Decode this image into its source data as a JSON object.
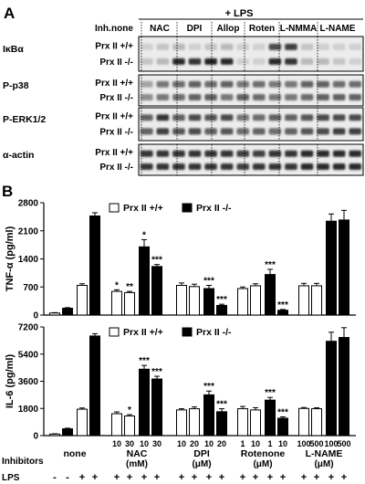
{
  "panel_a": {
    "panel_label": "A",
    "lps_header": "+ LPS",
    "inh_label": "Inh.",
    "column_headers": [
      "none",
      "NAC",
      "DPI",
      "Allop",
      "Roten",
      "L-NMMA",
      "L-NAME"
    ],
    "blots": [
      {
        "protein": "IκBα",
        "rows": [
          "Prx II +/+",
          "Prx II -/-"
        ]
      },
      {
        "protein": "P-p38",
        "rows": [
          "Prx II +/+",
          "Prx II -/-"
        ]
      },
      {
        "protein": "P-ERK1/2",
        "rows": [
          "Prx II +/+",
          "Prx II -/-"
        ]
      },
      {
        "protein": "α-actin",
        "rows": [
          "Prx II +/+",
          "Prx II -/-"
        ]
      }
    ]
  },
  "panel_b": {
    "panel_label": "B",
    "inhibitors_label": "Inhibitors",
    "lps_label": "LPS",
    "groups": [
      {
        "name": "none",
        "unit": "",
        "doses": [
          "",
          "",
          "",
          ""
        ]
      },
      {
        "name": "NAC",
        "unit": "(mM)",
        "doses": [
          "10",
          "30",
          "10",
          "30"
        ]
      },
      {
        "name": "DPI",
        "unit": "(μM)",
        "doses": [
          "10",
          "20",
          "10",
          "20"
        ]
      },
      {
        "name": "Rotenone",
        "unit": "(μM)",
        "doses": [
          "1",
          "10",
          "1",
          "10"
        ]
      },
      {
        "name": "L-NAME",
        "unit": "(μM)",
        "doses": [
          "100",
          "500",
          "100",
          "500"
        ]
      }
    ],
    "lps_signs": [
      "-",
      "-",
      "+",
      "+",
      "+",
      "+",
      "+",
      "+",
      "+",
      "+",
      "+",
      "+",
      "+",
      "+",
      "+",
      "+",
      "+",
      "+",
      "+",
      "+"
    ]
  },
  "chart_data": [
    {
      "type": "bar",
      "ylabel": "TNF-α (pg/ml)",
      "ylim": [
        0,
        2800
      ],
      "yticks": [
        0,
        700,
        1400,
        2100,
        2800
      ],
      "legend": [
        "Prx II +/+",
        "Prx II -/-"
      ],
      "legend_position": "top-center",
      "bars": [
        {
          "genotype": "+/+",
          "value": 50,
          "err": 10,
          "sig": ""
        },
        {
          "genotype": "-/-",
          "value": 170,
          "err": 15,
          "sig": ""
        },
        {
          "genotype": "+/+",
          "value": 740,
          "err": 40,
          "sig": ""
        },
        {
          "genotype": "-/-",
          "value": 2470,
          "err": 80,
          "sig": ""
        },
        {
          "genotype": "+/+",
          "value": 590,
          "err": 40,
          "sig": "*"
        },
        {
          "genotype": "+/+",
          "value": 560,
          "err": 30,
          "sig": "**"
        },
        {
          "genotype": "-/-",
          "value": 1700,
          "err": 180,
          "sig": "*"
        },
        {
          "genotype": "-/-",
          "value": 1210,
          "err": 50,
          "sig": "***"
        },
        {
          "genotype": "+/+",
          "value": 740,
          "err": 60,
          "sig": ""
        },
        {
          "genotype": "+/+",
          "value": 710,
          "err": 60,
          "sig": ""
        },
        {
          "genotype": "-/-",
          "value": 660,
          "err": 80,
          "sig": "***"
        },
        {
          "genotype": "-/-",
          "value": 240,
          "err": 30,
          "sig": "***"
        },
        {
          "genotype": "+/+",
          "value": 660,
          "err": 40,
          "sig": ""
        },
        {
          "genotype": "+/+",
          "value": 730,
          "err": 50,
          "sig": ""
        },
        {
          "genotype": "-/-",
          "value": 1010,
          "err": 130,
          "sig": "***"
        },
        {
          "genotype": "-/-",
          "value": 120,
          "err": 20,
          "sig": "***"
        },
        {
          "genotype": "+/+",
          "value": 730,
          "err": 60,
          "sig": ""
        },
        {
          "genotype": "+/+",
          "value": 730,
          "err": 60,
          "sig": ""
        },
        {
          "genotype": "-/-",
          "value": 2340,
          "err": 180,
          "sig": ""
        },
        {
          "genotype": "-/-",
          "value": 2370,
          "err": 240,
          "sig": ""
        }
      ]
    },
    {
      "type": "bar",
      "ylabel": "IL-6 (pg/ml)",
      "ylim": [
        0,
        7200
      ],
      "yticks": [
        0,
        1800,
        3600,
        5400,
        7200
      ],
      "legend": [
        "Prx II +/+",
        "Prx II -/-"
      ],
      "legend_position": "top-center",
      "bars": [
        {
          "genotype": "+/+",
          "value": 100,
          "err": 20,
          "sig": ""
        },
        {
          "genotype": "-/-",
          "value": 450,
          "err": 40,
          "sig": ""
        },
        {
          "genotype": "+/+",
          "value": 1750,
          "err": 80,
          "sig": ""
        },
        {
          "genotype": "-/-",
          "value": 6600,
          "err": 150,
          "sig": ""
        },
        {
          "genotype": "+/+",
          "value": 1450,
          "err": 120,
          "sig": ""
        },
        {
          "genotype": "+/+",
          "value": 1300,
          "err": 90,
          "sig": "*"
        },
        {
          "genotype": "-/-",
          "value": 4400,
          "err": 250,
          "sig": "***"
        },
        {
          "genotype": "-/-",
          "value": 3750,
          "err": 180,
          "sig": "***"
        },
        {
          "genotype": "+/+",
          "value": 1700,
          "err": 80,
          "sig": ""
        },
        {
          "genotype": "+/+",
          "value": 1780,
          "err": 120,
          "sig": ""
        },
        {
          "genotype": "-/-",
          "value": 2700,
          "err": 250,
          "sig": "***"
        },
        {
          "genotype": "-/-",
          "value": 1580,
          "err": 200,
          "sig": "***"
        },
        {
          "genotype": "+/+",
          "value": 1780,
          "err": 150,
          "sig": ""
        },
        {
          "genotype": "+/+",
          "value": 1700,
          "err": 150,
          "sig": ""
        },
        {
          "genotype": "-/-",
          "value": 2350,
          "err": 180,
          "sig": "***"
        },
        {
          "genotype": "-/-",
          "value": 1150,
          "err": 90,
          "sig": "***"
        },
        {
          "genotype": "+/+",
          "value": 1800,
          "err": 60,
          "sig": ""
        },
        {
          "genotype": "+/+",
          "value": 1780,
          "err": 60,
          "sig": ""
        },
        {
          "genotype": "-/-",
          "value": 6250,
          "err": 600,
          "sig": ""
        },
        {
          "genotype": "-/-",
          "value": 6500,
          "err": 650,
          "sig": ""
        }
      ]
    }
  ]
}
